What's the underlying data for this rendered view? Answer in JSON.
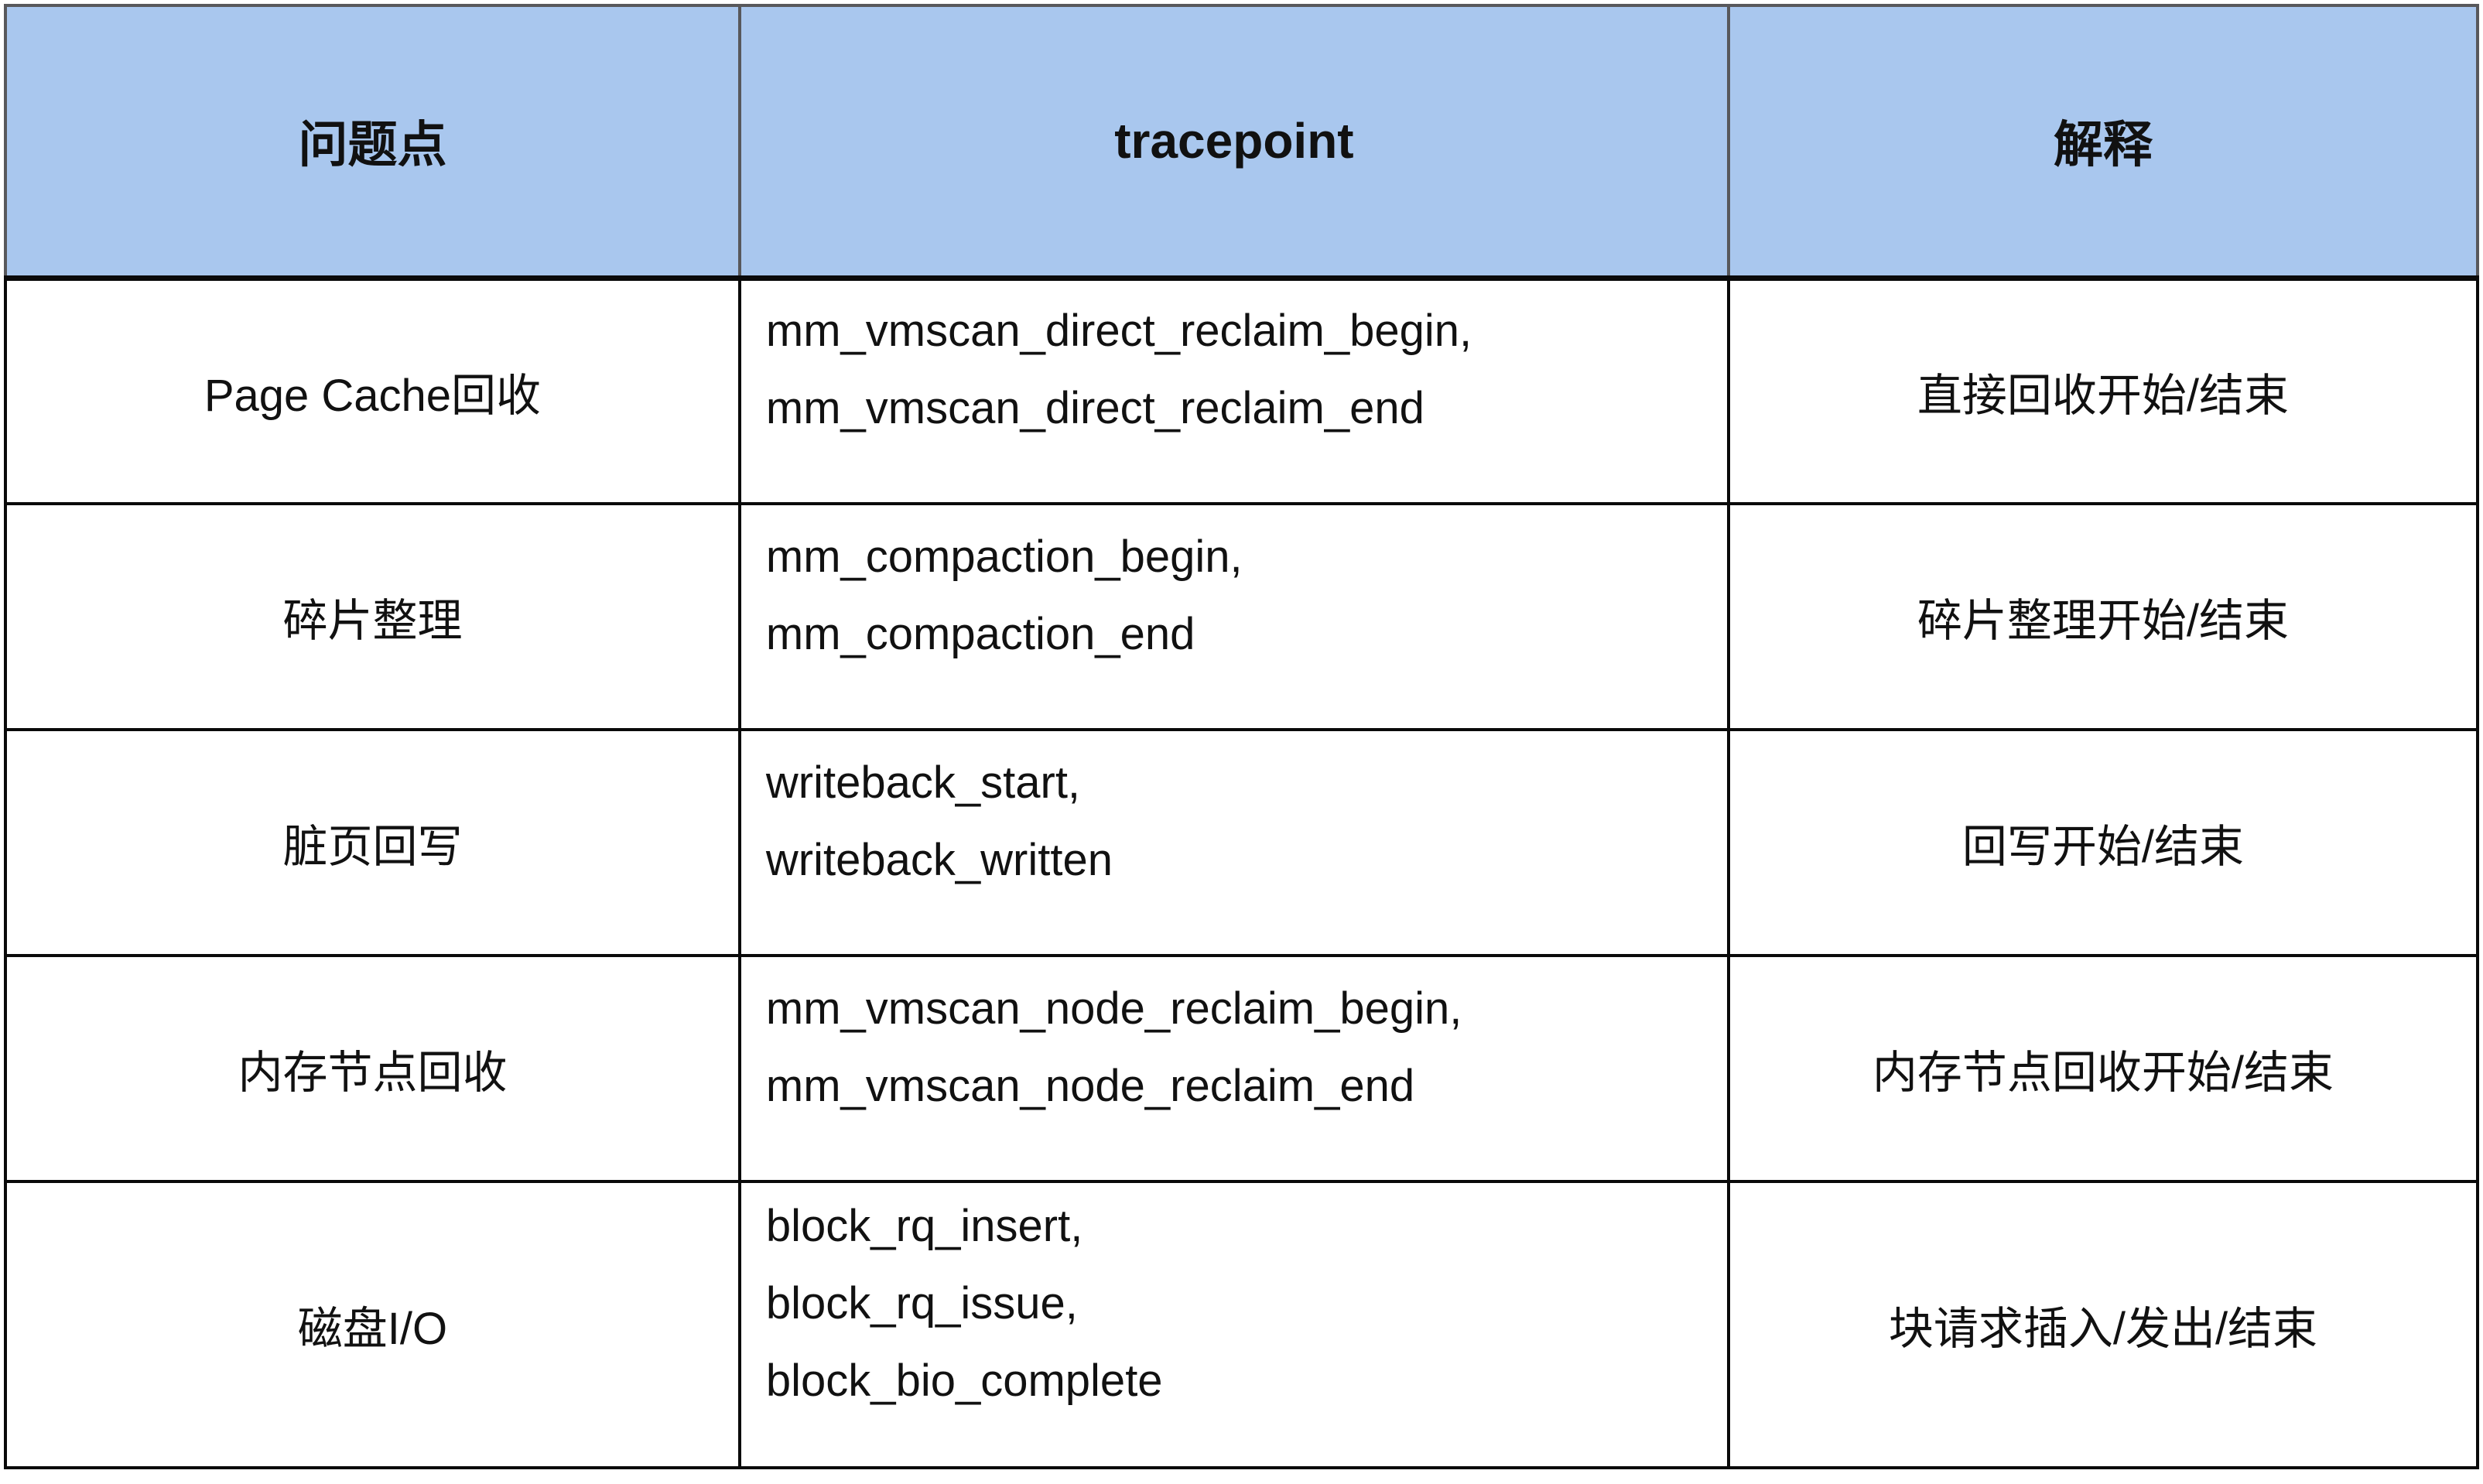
{
  "table": {
    "header": {
      "problem": "问题点",
      "tracepoint": "tracepoint",
      "explanation": "解释"
    },
    "rows": [
      {
        "problem": "Page Cache回收",
        "tracepoints": [
          "mm_vmscan_direct_reclaim_begin,",
          "mm_vmscan_direct_reclaim_end"
        ],
        "explanation": "直接回收开始/结束"
      },
      {
        "problem": "碎片整理",
        "tracepoints": [
          "mm_compaction_begin,",
          "mm_compaction_end"
        ],
        "explanation": "碎片整理开始/结束"
      },
      {
        "problem": "脏页回写",
        "tracepoints": [
          "writeback_start,",
          "writeback_written"
        ],
        "explanation": "回写开始/结束"
      },
      {
        "problem": "内存节点回收",
        "tracepoints": [
          "mm_vmscan_node_reclaim_begin,",
          "mm_vmscan_node_reclaim_end"
        ],
        "explanation": "内存节点回收开始/结束"
      },
      {
        "problem": "磁盘I/O",
        "tracepoints": [
          "block_rq_insert,",
          "block_rq_issue,",
          "block_bio_complete"
        ],
        "explanation": "块请求插入/发出/结束"
      }
    ],
    "colors": {
      "header_bg": "#a9c7ee",
      "header_border": "#58585b",
      "body_border": "#0a0a0a",
      "text": "#111111"
    }
  }
}
